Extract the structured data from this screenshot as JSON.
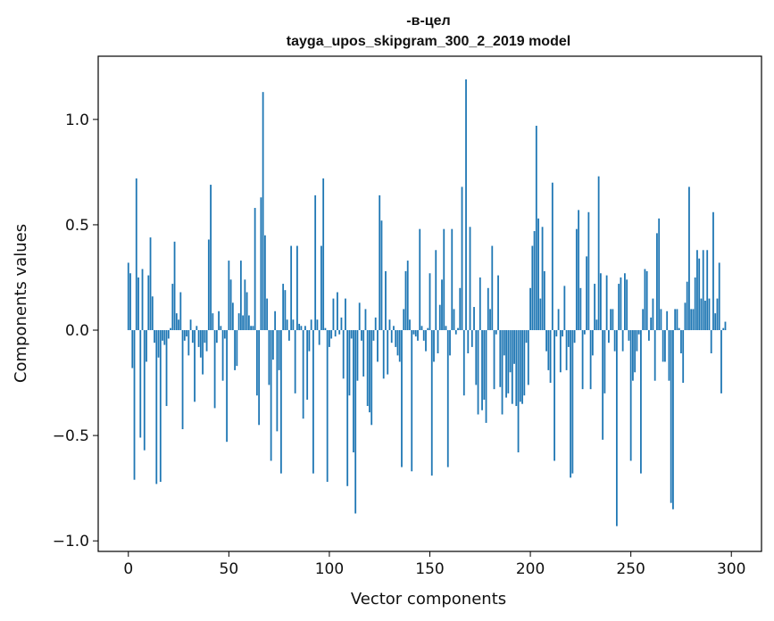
{
  "chart_data": {
    "type": "bar",
    "title": "-в-цел",
    "subtitle": "tayga_upos_skipgram_300_2_2019 model",
    "xlabel": "Vector components",
    "ylabel": "Components values",
    "xlim": [
      -15,
      315
    ],
    "ylim": [
      -1.05,
      1.3
    ],
    "xticks": [
      0,
      50,
      100,
      150,
      200,
      250,
      300
    ],
    "xtick_labels": [
      "0",
      "50",
      "100",
      "150",
      "200",
      "250",
      "300"
    ],
    "yticks": [
      -1.0,
      -0.5,
      0.0,
      0.5,
      1.0
    ],
    "ytick_labels": [
      "−1.0",
      "−0.5",
      "0.0",
      "0.5",
      "1.0"
    ],
    "grid": false,
    "bar_color": "#1f77b4",
    "values": [
      0.32,
      0.27,
      -0.18,
      -0.71,
      0.72,
      0.25,
      -0.51,
      0.29,
      -0.57,
      -0.15,
      0.26,
      0.44,
      0.16,
      -0.06,
      -0.73,
      -0.13,
      -0.72,
      -0.05,
      -0.07,
      -0.36,
      -0.04,
      0.01,
      0.22,
      0.42,
      0.08,
      0.05,
      0.18,
      -0.47,
      -0.05,
      -0.03,
      -0.12,
      0.05,
      -0.06,
      -0.34,
      0.02,
      -0.08,
      -0.13,
      -0.21,
      -0.06,
      -0.1,
      0.43,
      0.69,
      0.08,
      -0.37,
      -0.06,
      0.09,
      0.02,
      -0.24,
      -0.04,
      -0.53,
      0.33,
      0.24,
      0.13,
      -0.19,
      -0.17,
      0.08,
      0.33,
      0.07,
      0.24,
      0.18,
      0.07,
      0.02,
      0.02,
      0.58,
      -0.31,
      -0.45,
      0.63,
      1.13,
      0.45,
      0.15,
      -0.26,
      -0.62,
      -0.14,
      0.09,
      -0.48,
      -0.19,
      -0.68,
      0.22,
      0.19,
      0.05,
      -0.05,
      0.4,
      0.05,
      -0.3,
      0.4,
      0.03,
      0.02,
      -0.42,
      0.02,
      -0.33,
      -0.1,
      0.05,
      -0.68,
      0.64,
      0.05,
      -0.07,
      0.4,
      0.72,
      0.01,
      -0.72,
      -0.08,
      -0.04,
      0.15,
      -0.03,
      0.18,
      -0.02,
      0.06,
      -0.23,
      0.15,
      -0.74,
      -0.31,
      -0.04,
      -0.58,
      -0.87,
      -0.24,
      0.13,
      -0.05,
      -0.22,
      0.1,
      -0.36,
      -0.39,
      -0.45,
      -0.05,
      0.06,
      -0.15,
      0.64,
      0.52,
      -0.23,
      0.28,
      -0.21,
      0.05,
      -0.06,
      0.02,
      -0.08,
      -0.12,
      -0.15,
      -0.65,
      0.1,
      0.28,
      0.33,
      0.05,
      -0.67,
      -0.02,
      -0.03,
      -0.05,
      0.48,
      0.02,
      -0.05,
      -0.1,
      0.01,
      0.27,
      -0.69,
      -0.15,
      0.38,
      -0.11,
      0.12,
      0.24,
      0.48,
      0.02,
      -0.65,
      -0.12,
      0.48,
      0.1,
      -0.02,
      0.01,
      0.2,
      0.68,
      -0.31,
      1.19,
      -0.11,
      0.49,
      -0.08,
      0.11,
      -0.26,
      -0.4,
      0.25,
      -0.38,
      -0.33,
      -0.44,
      0.2,
      0.1,
      0.4,
      -0.28,
      -0.02,
      0.26,
      -0.27,
      -0.4,
      -0.12,
      -0.32,
      -0.3,
      -0.2,
      -0.35,
      -0.16,
      -0.36,
      -0.58,
      -0.34,
      -0.35,
      -0.31,
      -0.06,
      -0.26,
      0.2,
      0.4,
      0.47,
      0.97,
      0.53,
      0.15,
      0.49,
      0.28,
      -0.1,
      -0.19,
      -0.25,
      0.7,
      -0.62,
      -0.03,
      0.1,
      -0.2,
      -0.03,
      0.21,
      -0.19,
      -0.08,
      -0.7,
      -0.68,
      -0.06,
      0.48,
      0.57,
      0.2,
      -0.28,
      -0.02,
      0.35,
      0.56,
      -0.28,
      -0.12,
      0.22,
      0.05,
      0.73,
      0.27,
      -0.52,
      -0.3,
      0.26,
      -0.06,
      0.1,
      0.1,
      -0.1,
      -0.93,
      0.22,
      0.25,
      -0.1,
      0.27,
      0.24,
      -0.05,
      -0.62,
      -0.24,
      -0.2,
      -0.1,
      -0.02,
      -0.68,
      0.1,
      0.29,
      0.28,
      -0.05,
      0.06,
      0.15,
      -0.24,
      0.46,
      0.53,
      0.1,
      -0.15,
      -0.15,
      0.09,
      -0.24,
      -0.82,
      -0.85,
      0.1,
      0.1,
      0.01,
      -0.11,
      -0.25,
      0.13,
      0.23,
      0.68,
      0.1,
      0.1,
      0.25,
      0.38,
      0.34,
      0.15,
      0.38,
      0.14,
      0.38,
      0.15,
      -0.11,
      0.56,
      0.08,
      0.15,
      0.32,
      -0.3,
      0.01,
      0.04
    ]
  }
}
